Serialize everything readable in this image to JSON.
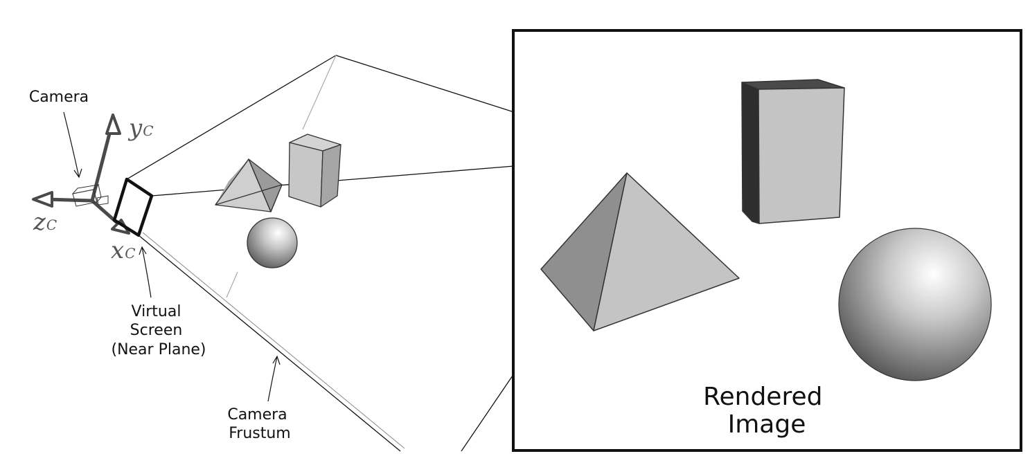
{
  "labels": {
    "camera": "Camera",
    "virtual_screen": [
      "Virtual",
      "Screen",
      "(Near Plane)"
    ],
    "camera_frustum": [
      "Camera",
      "Frustum"
    ],
    "rendered_image": [
      "Rendered",
      "Image"
    ]
  },
  "axes": {
    "y": {
      "letter": "y",
      "subscript": "C"
    },
    "z": {
      "letter": "z",
      "subscript": "C"
    },
    "x": {
      "letter": "x",
      "subscript": "C"
    }
  },
  "colors": {
    "axis": "#4a4a4a",
    "shape_light": "#c4c4c4",
    "shape_mid": "#909090",
    "shape_dark": "#333333",
    "outline": "#333333"
  }
}
